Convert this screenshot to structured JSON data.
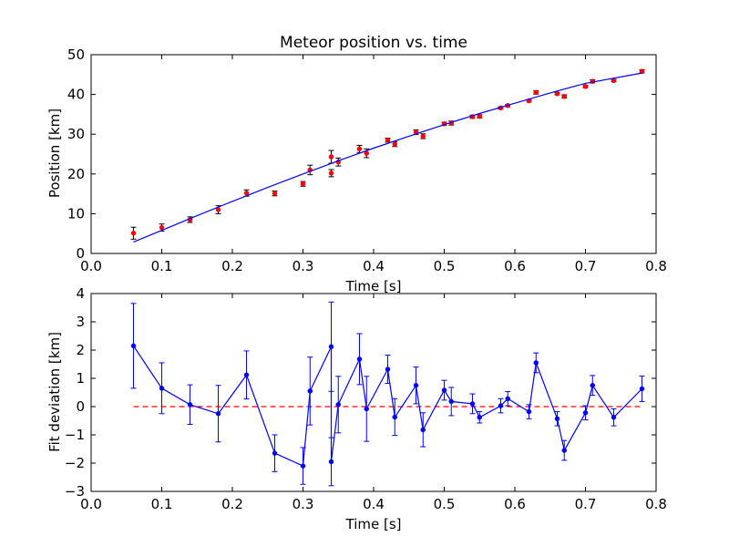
{
  "chart_data": [
    {
      "type": "scatter",
      "title": "Meteor position vs. time",
      "xlabel": "Time [s]",
      "ylabel": "Position [km]",
      "xlim": [
        0.0,
        0.8
      ],
      "ylim": [
        0,
        50
      ],
      "xticks": [
        "0.0",
        "0.1",
        "0.2",
        "0.3",
        "0.4",
        "0.5",
        "0.6",
        "0.7",
        "0.8"
      ],
      "yticks": [
        "0",
        "10",
        "20",
        "30",
        "40",
        "50"
      ],
      "grid": false,
      "colors": {
        "points": "#ff0000",
        "fit": "#0000ff"
      },
      "series": [
        {
          "kind": "errorbar-points",
          "x": [
            0.06,
            0.1,
            0.14,
            0.18,
            0.22,
            0.26,
            0.3,
            0.31,
            0.34,
            0.34,
            0.35,
            0.38,
            0.39,
            0.42,
            0.43,
            0.46,
            0.47,
            0.5,
            0.51,
            0.54,
            0.55,
            0.58,
            0.59,
            0.62,
            0.63,
            0.66,
            0.67,
            0.7,
            0.71,
            0.74,
            0.78
          ],
          "y": [
            5.1,
            6.5,
            8.5,
            11.0,
            15.2,
            15.1,
            17.5,
            21.0,
            24.3,
            20.2,
            23.0,
            26.3,
            25.2,
            28.5,
            27.5,
            30.5,
            29.5,
            32.6,
            32.8,
            34.4,
            34.5,
            36.6,
            37.2,
            38.4,
            40.5,
            40.2,
            39.5,
            42.0,
            43.3,
            43.5,
            45.8
          ],
          "err": [
            1.5,
            0.9,
            0.7,
            1.0,
            0.8,
            0.6,
            0.6,
            1.2,
            1.6,
            0.9,
            1.0,
            0.9,
            1.1,
            0.5,
            0.6,
            0.6,
            0.6,
            0.4,
            0.5,
            0.4,
            0.4,
            0.3,
            0.3,
            0.3,
            0.4,
            0.3,
            0.4,
            0.3,
            0.4,
            0.3,
            0.4
          ]
        },
        {
          "kind": "fit-line",
          "x": [
            0.06,
            0.1,
            0.15,
            0.2,
            0.25,
            0.3,
            0.35,
            0.4,
            0.45,
            0.5,
            0.55,
            0.6,
            0.65,
            0.7,
            0.78
          ],
          "y": [
            2.9,
            5.8,
            9.5,
            13.1,
            16.6,
            20.0,
            23.3,
            26.5,
            29.5,
            32.4,
            35.2,
            37.8,
            40.4,
            42.8,
            45.4
          ]
        }
      ]
    },
    {
      "type": "line",
      "title": "",
      "xlabel": "Time [s]",
      "ylabel": "Fit deviation [km]",
      "xlim": [
        0.0,
        0.8
      ],
      "ylim": [
        -3,
        4
      ],
      "xticks": [
        "0.0",
        "0.1",
        "0.2",
        "0.3",
        "0.4",
        "0.5",
        "0.6",
        "0.7",
        "0.8"
      ],
      "yticks": [
        "−3",
        "−2",
        "−1",
        "0",
        "1",
        "2",
        "3",
        "4"
      ],
      "grid": false,
      "colors": {
        "series": "#0000ff",
        "reference": "#ff0000"
      },
      "reference_line": {
        "y": 0,
        "x": [
          0.06,
          0.78
        ],
        "style": "dashed"
      },
      "series": [
        {
          "kind": "errorbar-line",
          "x": [
            0.06,
            0.1,
            0.14,
            0.18,
            0.22,
            0.26,
            0.3,
            0.31,
            0.34,
            0.34,
            0.35,
            0.38,
            0.39,
            0.42,
            0.43,
            0.46,
            0.47,
            0.5,
            0.51,
            0.54,
            0.55,
            0.58,
            0.59,
            0.62,
            0.63,
            0.66,
            0.67,
            0.7,
            0.71,
            0.74,
            0.78
          ],
          "y": [
            2.15,
            0.65,
            0.07,
            -0.25,
            1.12,
            -1.65,
            -2.1,
            0.55,
            2.12,
            -1.95,
            0.07,
            1.68,
            -0.08,
            1.32,
            -0.37,
            0.75,
            -0.82,
            0.58,
            0.18,
            0.1,
            -0.38,
            0.03,
            0.28,
            -0.18,
            1.55,
            -0.43,
            -1.55,
            -0.22,
            0.75,
            -0.38,
            0.63
          ],
          "err": [
            1.5,
            0.9,
            0.7,
            1.0,
            0.85,
            0.65,
            0.65,
            1.2,
            1.58,
            0.85,
            1.0,
            0.9,
            1.15,
            0.5,
            0.65,
            0.65,
            0.6,
            0.35,
            0.5,
            0.35,
            0.2,
            0.25,
            0.25,
            0.25,
            0.35,
            0.25,
            0.35,
            0.25,
            0.35,
            0.3,
            0.45
          ]
        }
      ]
    }
  ]
}
